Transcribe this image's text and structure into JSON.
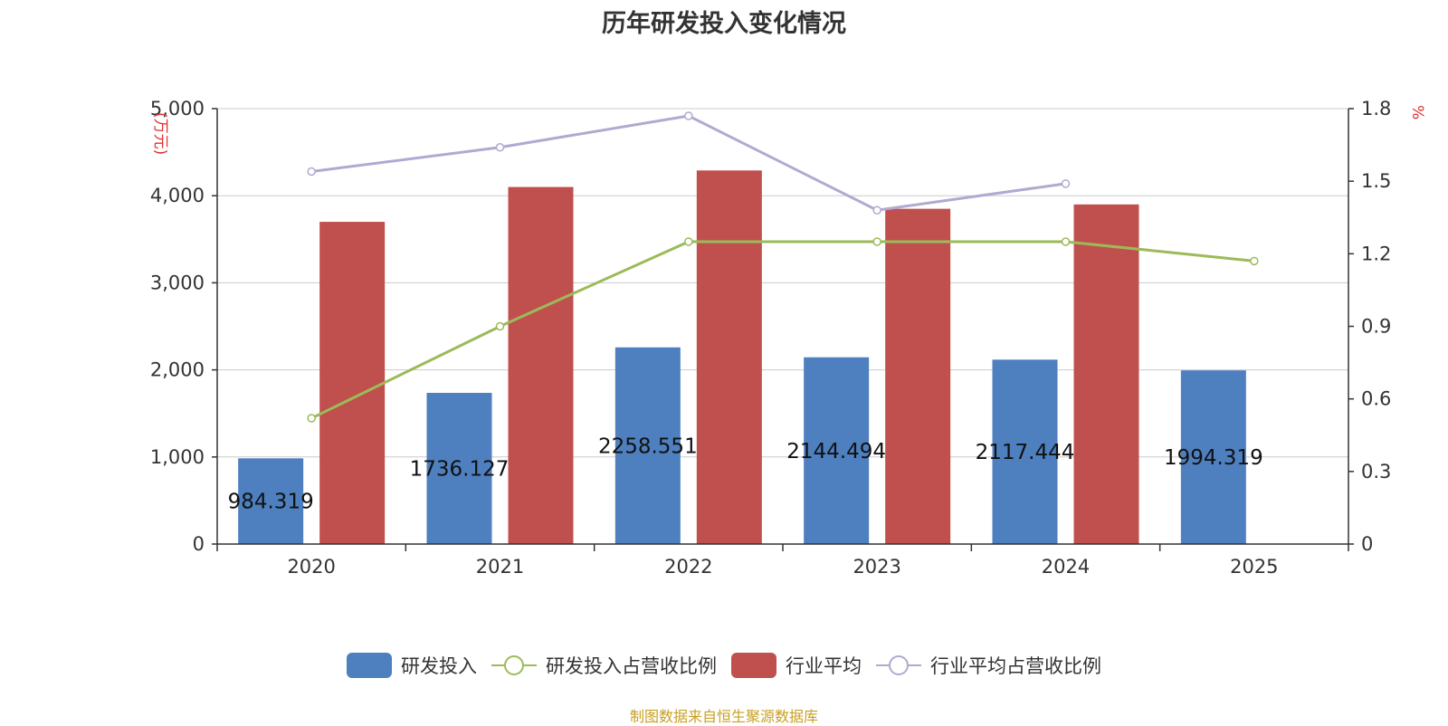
{
  "colors": {
    "rd": "#4e7fbf",
    "rd_ratio": "#9bbb59",
    "avg": "#c0504d",
    "avg_ratio": "#b3a8d1",
    "unit_label": "#e03030",
    "source": "#c8a020",
    "axis_text": "#333333",
    "grid": "#cccccc"
  },
  "chart_data": {
    "type": "bar",
    "title": "历年研发投入变化情况",
    "categories": [
      "2020",
      "2021",
      "2022",
      "2023",
      "2024",
      "2025"
    ],
    "y_left": {
      "label": "(万元)",
      "range": [
        0,
        5000
      ],
      "ticks": [
        "0",
        "1,000",
        "2,000",
        "3,000",
        "4,000",
        "5,000"
      ]
    },
    "y_right": {
      "label": "%",
      "range": [
        0,
        1.8
      ],
      "ticks": [
        "0",
        "0.3",
        "0.6",
        "0.9",
        "1.2",
        "1.5",
        "1.8"
      ]
    },
    "grid": true,
    "legend_position": "bottom",
    "series": [
      {
        "name": "研发投入",
        "type": "bar",
        "axis": "left",
        "color": "#4e7fbf",
        "values": [
          984.319,
          1736.127,
          2258.551,
          2144.494,
          2117.444,
          1994.319
        ],
        "labels": [
          "984.319",
          "1736.127",
          "2258.551",
          "2144.494",
          "2117.444",
          "1994.319"
        ]
      },
      {
        "name": "研发投入占营收比例",
        "type": "line",
        "axis": "right",
        "color": "#9bbb59",
        "values": [
          0.52,
          0.9,
          1.25,
          1.25,
          1.25,
          1.17
        ]
      },
      {
        "name": "行业平均",
        "type": "bar",
        "axis": "left",
        "color": "#c0504d",
        "values": [
          3700,
          4100,
          4290,
          3850,
          3900,
          null
        ]
      },
      {
        "name": "行业平均占营收比例",
        "type": "line",
        "axis": "right",
        "color": "#b3a8d1",
        "values": [
          1.54,
          1.64,
          1.77,
          1.38,
          1.49,
          null
        ]
      }
    ]
  },
  "source": "制图数据来自恒生聚源数据库"
}
